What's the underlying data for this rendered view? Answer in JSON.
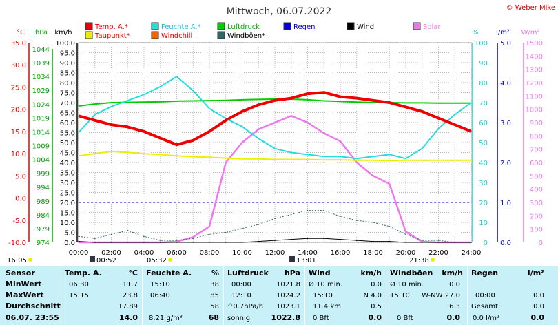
{
  "title": "Mittwoch, 06.07.2022",
  "copyright": "© Weber Mike",
  "axes": {
    "temp": {
      "unit": "°C",
      "ticks": [
        "35.0",
        "30.0",
        "25.0",
        "20.0",
        "15.0",
        "10.0",
        "5.0",
        "0.0",
        "-5.0",
        "-10.0"
      ]
    },
    "hpa": {
      "unit": "hPa",
      "ticks": [
        "1044",
        "1039",
        "1034",
        "1029",
        "1024",
        "1019",
        "1014",
        "1009",
        "1004",
        "999",
        "994",
        "989",
        "984",
        "979",
        "974"
      ]
    },
    "kmh": {
      "unit": "km/h",
      "ticks": [
        "100.0",
        "95.0",
        "90.0",
        "85.0",
        "80.0",
        "75.0",
        "70.0",
        "65.0",
        "60.0",
        "55.0",
        "50.0",
        "45.0",
        "40.0",
        "35.0",
        "30.0",
        "25.0",
        "20.0",
        "15.0",
        "10.0",
        "5.0",
        "0.0"
      ]
    },
    "pct": {
      "unit": "%",
      "ticks": [
        "100",
        "90",
        "80",
        "70",
        "60",
        "50",
        "40",
        "30",
        "20",
        "10",
        "0"
      ]
    },
    "rain": {
      "unit": "l/m²",
      "ticks": [
        "5.0",
        "4.0",
        "3.0",
        "2.0",
        "1.0",
        "0.0"
      ]
    },
    "solar": {
      "unit": "W/m²",
      "ticks": [
        "1500",
        "1400",
        "1300",
        "1200",
        "1100",
        "1000",
        "900",
        "800",
        "700",
        "600",
        "500",
        "400",
        "300",
        "200",
        "100",
        "0"
      ]
    },
    "time": [
      "00:00",
      "02:00",
      "04:00",
      "06:00",
      "08:00",
      "10:00",
      "12:00",
      "14:00",
      "16:00",
      "18:00",
      "20:00",
      "22:00",
      "24:00"
    ]
  },
  "legend": [
    {
      "label": "Temp. A.*",
      "color": "#ee0000"
    },
    {
      "label": "Feuchte A.*",
      "color": "#22dddd"
    },
    {
      "label": "Luftdruck",
      "color": "#00cc00"
    },
    {
      "label": "Regen",
      "color": "#0000dd"
    },
    {
      "label": "Wind",
      "color": "#000000"
    },
    {
      "label": "Solar",
      "color": "#ee77ee"
    },
    {
      "label": "Taupunkt*",
      "color": "#eeee00"
    },
    {
      "label": "Windchill",
      "color": "#ee6600"
    },
    {
      "label": "Windböen*",
      "color": "#336666"
    }
  ],
  "sun": {
    "rise_left": "16:05",
    "rise": "00:52",
    "set_mid": "05:32",
    "moon": "13:01",
    "set": "21:38"
  },
  "chart_data": {
    "type": "line",
    "x_hours": [
      0,
      1,
      2,
      3,
      4,
      5,
      6,
      7,
      8,
      9,
      10,
      11,
      12,
      13,
      14,
      15,
      16,
      17,
      18,
      19,
      20,
      21,
      22,
      23,
      24
    ],
    "series": [
      {
        "name": "Temp. A.*",
        "axis": "°C",
        "values": [
          18.5,
          17.5,
          16.5,
          16.0,
          15.0,
          13.5,
          12.0,
          13.0,
          15.0,
          17.5,
          19.5,
          21.0,
          22.0,
          22.5,
          23.5,
          23.8,
          22.8,
          22.5,
          22.0,
          21.5,
          20.5,
          19.5,
          18.0,
          16.5,
          15.0
        ]
      },
      {
        "name": "Feuchte A.*",
        "axis": "%",
        "values": [
          55,
          64,
          68,
          71,
          74,
          78,
          83,
          76,
          67,
          62,
          58,
          52,
          47,
          45,
          44,
          43,
          43,
          42,
          43,
          44,
          42,
          47,
          57,
          64,
          70
        ]
      },
      {
        "name": "Luftdruck",
        "axis": "hPa",
        "values": [
          1021.8,
          1022.5,
          1023.0,
          1023.1,
          1023.2,
          1023.3,
          1023.5,
          1023.6,
          1023.7,
          1023.8,
          1024.0,
          1024.1,
          1024.2,
          1024.2,
          1024.0,
          1023.6,
          1023.4,
          1023.2,
          1023.0,
          1023.0,
          1022.9,
          1022.9,
          1022.8,
          1022.8,
          1022.8
        ]
      },
      {
        "name": "Taupunkt*",
        "axis": "°C",
        "values": [
          9.5,
          10.0,
          10.5,
          10.3,
          10.0,
          9.8,
          9.5,
          9.3,
          9.2,
          9.0,
          8.8,
          8.8,
          8.7,
          8.7,
          8.7,
          8.6,
          8.6,
          8.5,
          8.5,
          8.4,
          8.5,
          8.5,
          8.5,
          8.5,
          8.5
        ]
      },
      {
        "name": "Solar",
        "axis": "W/m²",
        "values": [
          0,
          0,
          0,
          0,
          0,
          0,
          5,
          40,
          120,
          600,
          750,
          850,
          900,
          950,
          900,
          820,
          760,
          600,
          500,
          440,
          80,
          5,
          0,
          0,
          0
        ]
      },
      {
        "name": "Windböen*",
        "axis": "km/h",
        "values": [
          3,
          2,
          4,
          6,
          3,
          1,
          1,
          2,
          4,
          5,
          7,
          9,
          12,
          14,
          16,
          16,
          13,
          11,
          10,
          8,
          4,
          1,
          1,
          0,
          0
        ]
      },
      {
        "name": "Wind",
        "axis": "km/h",
        "values": [
          0.5,
          0,
          0,
          0,
          0,
          0,
          0,
          0,
          0,
          0,
          0,
          0.5,
          1,
          1.5,
          2,
          2,
          1.5,
          1,
          0.5,
          0.5,
          0,
          0,
          0,
          0,
          0
        ]
      }
    ],
    "ylim": {
      "°C": [
        -10,
        35
      ],
      "hPa": [
        974,
        1044
      ],
      "km/h": [
        0,
        100
      ],
      "%": [
        0,
        100
      ],
      "l/m²": [
        0,
        5
      ],
      "W/m²": [
        0,
        1500
      ]
    }
  },
  "table": {
    "row_labels": [
      "Sensor",
      "MinWert",
      "MaxWert",
      "Durchschnitt",
      "06.07. 23:55"
    ],
    "temp": {
      "h": "Temp. A.",
      "u": "°C",
      "min_t": "06:30",
      "min_v": "11.7",
      "max_t": "15:15",
      "max_v": "23.8",
      "avg": "17.89",
      "cur": "14.0"
    },
    "hum": {
      "h": "Feuchte A.",
      "u": "%",
      "min_t": "15:10",
      "min_v": "38",
      "max_t": "06:40",
      "max_v": "85",
      "avg": "58",
      "cur_l": "8.21 g/m³",
      "cur": "68"
    },
    "press": {
      "h": "Luftdruck",
      "u": "hPa",
      "min_t": "00:00",
      "min_v": "1021.8",
      "max_t": "12:10",
      "max_v": "1024.2",
      "avg_l": "^0.7hPa/h",
      "avg": "1023.1",
      "cur_l": "sonnig",
      "cur": "1022.8"
    },
    "wind": {
      "h": "Wind",
      "u": "km/h",
      "min_l": "Ø 10 min.",
      "min_v": "0.0",
      "max_t": "15:10",
      "max_m": "N 4.0",
      "max_v": "",
      "avg_l": "11.4 km",
      "avg": "0.5",
      "cur_l": "0 Bft",
      "cur": "0.0"
    },
    "gust": {
      "h": "Windböen",
      "u": "km/h",
      "min_l": "Ø 10 min.",
      "min_v": "0.0",
      "max_t": "15:10",
      "max_m": "W-NW 27.0",
      "avg": "6.3",
      "cur_l": "0 Bft",
      "cur": "0.0"
    },
    "rain": {
      "h": "Regen",
      "u": "l/m²",
      "max_t": "00:00",
      "max_v": "0.0",
      "avg_l": "Gesamt:",
      "avg": "0.0",
      "cur_l": "0.0 l/m²",
      "cur": "0.0"
    }
  }
}
